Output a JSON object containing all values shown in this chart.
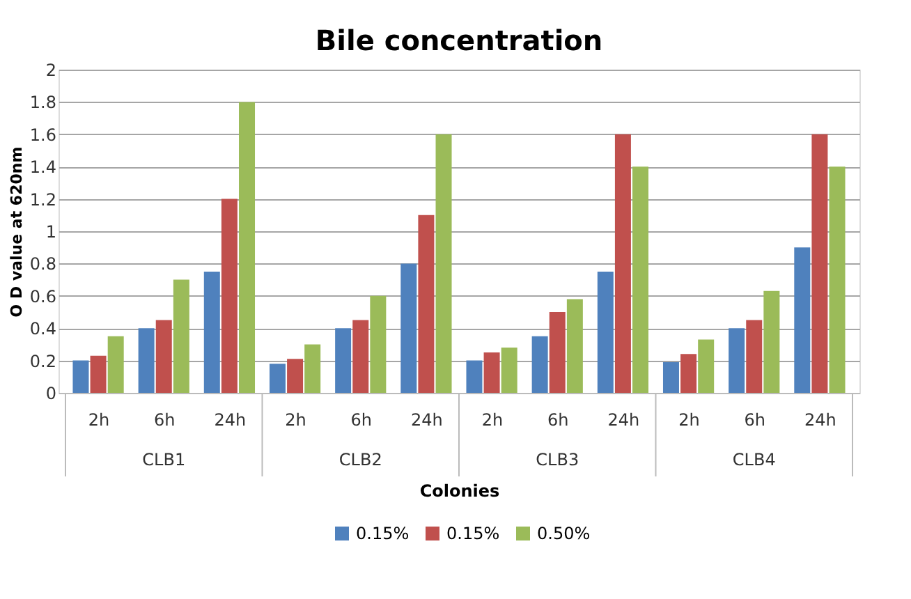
{
  "chart_data": {
    "type": "bar",
    "title": "Bile concentration",
    "xlabel": "Colonies",
    "ylabel": "O D value at 620nm",
    "categories": [
      "2h",
      "6h",
      "24h",
      "2h",
      "6h",
      "24h",
      "2h",
      "6h",
      "24h",
      "2h",
      "6h",
      "24h"
    ],
    "annotations": [
      "CLB1",
      "CLB2",
      "CLB3",
      "CLB4"
    ],
    "series": [
      {
        "name": "0.15%",
        "color": "#4f81bd",
        "values": [
          0.2,
          0.4,
          0.75,
          0.18,
          0.4,
          0.8,
          0.2,
          0.35,
          0.75,
          0.19,
          0.4,
          0.9
        ]
      },
      {
        "name": "0.15%",
        "color": "#c0504d",
        "values": [
          0.23,
          0.45,
          1.2,
          0.21,
          0.45,
          1.1,
          0.25,
          0.5,
          1.6,
          0.24,
          0.45,
          1.6
        ]
      },
      {
        "name": "0.50%",
        "color": "#9bbb59",
        "values": [
          0.35,
          0.7,
          1.8,
          0.3,
          0.6,
          1.6,
          0.28,
          0.58,
          1.4,
          0.33,
          0.63,
          1.4
        ]
      }
    ],
    "ylim": [
      0,
      2
    ],
    "yticks": [
      0,
      0.2,
      0.4,
      0.6,
      0.8,
      1,
      1.2,
      1.4,
      1.6,
      1.8,
      2
    ],
    "grid": "y",
    "legend": "bottom"
  }
}
